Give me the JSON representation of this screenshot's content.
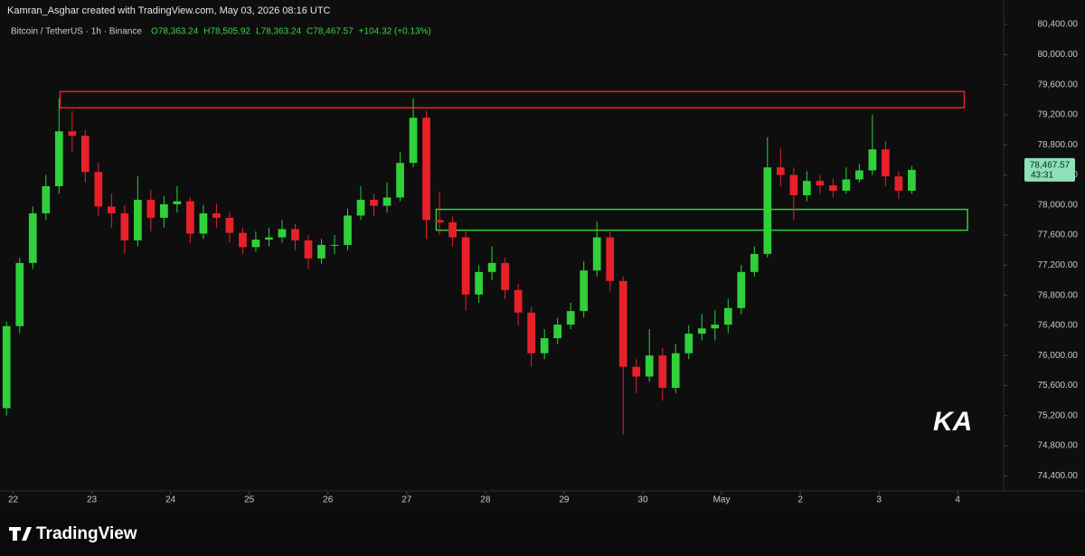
{
  "chart_data": {
    "type": "candlestick",
    "header": "Kamran_Asghar created with TradingView.com, May 03, 2026 08:16 UTC",
    "symbol": "Bitcoin / TetherUS · 1h · Binance",
    "ohlc_legend": [
      "O78,363.24",
      "H78,505.92",
      "L78,363.24",
      "C78,467.57",
      "+104.32 (+0.13%)"
    ],
    "last_price_label": "78,467.57",
    "countdown": "43:31",
    "brand": "TradingView",
    "watermark": "KA",
    "up_color": "#2fd03a",
    "down_color": "#e8202a",
    "legend_color": "#3ed04a",
    "x": [
      -2,
      2,
      6,
      10,
      14,
      18,
      22,
      26,
      30,
      34,
      38,
      42,
      46,
      50,
      54,
      58,
      62,
      66,
      70,
      74,
      78,
      82,
      86,
      90,
      94,
      98,
      102,
      106,
      110,
      114,
      118,
      122,
      126,
      130,
      134,
      138,
      142,
      146,
      150,
      154,
      158,
      162,
      166,
      170,
      174,
      178,
      182,
      186,
      190,
      194,
      198,
      202,
      206,
      210,
      214,
      218,
      222,
      226,
      230,
      234,
      238,
      242,
      246,
      250,
      254,
      258,
      262,
      266,
      270,
      274
    ],
    "open": [
      75300,
      76390,
      77230,
      77890,
      78250,
      78980,
      78920,
      78440,
      77980,
      77890,
      77530,
      78070,
      77830,
      78010,
      78050,
      77620,
      77890,
      77830,
      77630,
      77440,
      77540,
      77570,
      77680,
      77530,
      77290,
      77470,
      77470,
      77860,
      78070,
      77990,
      78100,
      78560,
      79160,
      77800,
      77770,
      77570,
      76810,
      77110,
      77230,
      76870,
      76570,
      76030,
      76230,
      76410,
      76590,
      77130,
      77570,
      76990,
      75850,
      75720,
      76000,
      75570,
      76030,
      76290,
      76360,
      76410,
      76630,
      77110,
      77350,
      78500,
      78400,
      78130,
      78320,
      78260,
      78190,
      78340,
      78460,
      78740,
      78380,
      78190
    ],
    "high": [
      76450,
      77300,
      77980,
      78400,
      79420,
      79250,
      79000,
      78560,
      78150,
      78000,
      78380,
      78200,
      78120,
      78250,
      78100,
      78000,
      78020,
      77900,
      77700,
      77650,
      77700,
      77800,
      77750,
      77600,
      77550,
      77600,
      77950,
      78250,
      78150,
      78300,
      78700,
      79420,
      79250,
      78180,
      77850,
      77650,
      77200,
      77450,
      77300,
      76950,
      76650,
      76350,
      76500,
      76700,
      77250,
      77780,
      77650,
      77050,
      75950,
      76350,
      76100,
      76150,
      76400,
      76550,
      76600,
      76750,
      77200,
      77450,
      78900,
      78750,
      78500,
      78450,
      78400,
      78350,
      78500,
      78550,
      79200,
      78850,
      78450,
      78520
    ],
    "low": [
      75200,
      76300,
      77150,
      77800,
      78150,
      78700,
      78300,
      77850,
      77700,
      77350,
      77450,
      77650,
      77700,
      77900,
      77500,
      77550,
      77700,
      77500,
      77350,
      77380,
      77450,
      77500,
      77400,
      77150,
      77220,
      77350,
      77400,
      77800,
      77850,
      77900,
      78050,
      78500,
      77550,
      77600,
      77450,
      76600,
      76700,
      77000,
      76750,
      76400,
      75850,
      75950,
      76150,
      76350,
      76500,
      77050,
      76850,
      74950,
      75500,
      75650,
      75400,
      75500,
      75950,
      76200,
      76200,
      76300,
      76550,
      77050,
      77300,
      78250,
      77800,
      78050,
      78150,
      78100,
      78150,
      78300,
      78400,
      78250,
      78080,
      78150
    ],
    "close": [
      76390,
      77230,
      77890,
      78250,
      78980,
      78920,
      78440,
      77980,
      77890,
      77530,
      78070,
      77830,
      78010,
      78050,
      77620,
      77890,
      77830,
      77630,
      77440,
      77540,
      77570,
      77680,
      77530,
      77290,
      77470,
      77470,
      77860,
      78070,
      77990,
      78100,
      78560,
      79160,
      77800,
      77770,
      77570,
      76810,
      77110,
      77230,
      76870,
      76570,
      76030,
      76230,
      76410,
      76590,
      77130,
      77570,
      76990,
      75850,
      75720,
      76000,
      75570,
      76030,
      76290,
      76360,
      76410,
      76630,
      77110,
      77350,
      78500,
      78400,
      78130,
      78320,
      78260,
      78190,
      78340,
      78460,
      78740,
      78380,
      78190,
      78467.57
    ],
    "xlim": [
      -4,
      302
    ],
    "ylim": [
      74200,
      80725
    ],
    "xticks": [
      {
        "value": 0,
        "label": "22"
      },
      {
        "value": 24,
        "label": "23"
      },
      {
        "value": 48,
        "label": "24"
      },
      {
        "value": 72,
        "label": "25"
      },
      {
        "value": 96,
        "label": "26"
      },
      {
        "value": 120,
        "label": "27"
      },
      {
        "value": 144,
        "label": "28"
      },
      {
        "value": 168,
        "label": "29"
      },
      {
        "value": 192,
        "label": "30"
      },
      {
        "value": 216,
        "label": "May"
      },
      {
        "value": 240,
        "label": "2"
      },
      {
        "value": 264,
        "label": "3"
      },
      {
        "value": 288,
        "label": "4"
      }
    ],
    "yticks": [
      {
        "value": 74400,
        "label": "74,400.00"
      },
      {
        "value": 74800,
        "label": "74,800.00"
      },
      {
        "value": 75200,
        "label": "75,200.00"
      },
      {
        "value": 75600,
        "label": "75,600.00"
      },
      {
        "value": 76000,
        "label": "76,000.00"
      },
      {
        "value": 76400,
        "label": "76,400.00"
      },
      {
        "value": 76800,
        "label": "76,800.00"
      },
      {
        "value": 77200,
        "label": "77,200.00"
      },
      {
        "value": 77600,
        "label": "77,600.00"
      },
      {
        "value": 78000,
        "label": "78,000.00"
      },
      {
        "value": 78400,
        "label": "78,400.00"
      },
      {
        "value": 78800,
        "label": "78,800.00"
      },
      {
        "value": 79200,
        "label": "79,200.00"
      },
      {
        "value": 79600,
        "label": "79,600.00"
      },
      {
        "value": 80000,
        "label": "80,000.00"
      },
      {
        "value": 80400,
        "label": "80,400.00"
      }
    ],
    "zones": [
      {
        "color": "#e8202a",
        "xlim": [
          14.3,
          290
        ],
        "ylim": [
          79292,
          79508
        ]
      },
      {
        "color": "#2fd03a",
        "xlim": [
          129,
          291
        ],
        "ylim": [
          77665,
          77942
        ]
      }
    ]
  }
}
